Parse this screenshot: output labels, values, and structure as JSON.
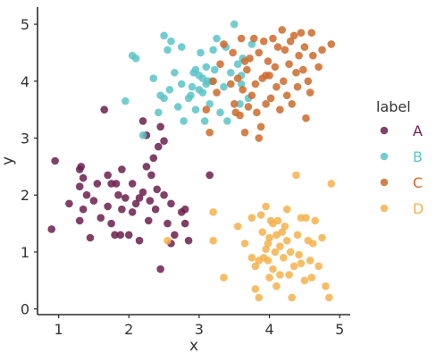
{
  "chart_data": {
    "type": "scatter",
    "xlabel": "x",
    "ylabel": "y",
    "xlim": [
      0.7,
      5.15
    ],
    "ylim": [
      -0.1,
      5.3
    ],
    "xticks": [
      "1",
      "2",
      "3",
      "4",
      "5"
    ],
    "yticks": [
      "0",
      "1",
      "2",
      "3",
      "4",
      "5"
    ],
    "grid": false,
    "legend": {
      "title": "label",
      "placement": "right",
      "entries": [
        "A",
        "B",
        "C",
        "D"
      ]
    },
    "series": [
      {
        "name": "A",
        "color": "#6b1f4e",
        "points": [
          [
            0.95,
            2.6
          ],
          [
            0.9,
            1.4
          ],
          [
            1.15,
            1.85
          ],
          [
            1.3,
            2.45
          ],
          [
            1.3,
            2.15
          ],
          [
            1.32,
            2.5
          ],
          [
            1.35,
            2.3
          ],
          [
            1.4,
            2.0
          ],
          [
            1.3,
            1.55
          ],
          [
            1.35,
            1.75
          ],
          [
            1.45,
            1.25
          ],
          [
            1.5,
            1.9
          ],
          [
            1.55,
            2.2
          ],
          [
            1.6,
            1.6
          ],
          [
            1.65,
            3.5
          ],
          [
            1.7,
            1.8
          ],
          [
            1.7,
            2.35
          ],
          [
            1.75,
            1.5
          ],
          [
            1.75,
            2.2
          ],
          [
            1.8,
            1.3
          ],
          [
            1.82,
            2.2
          ],
          [
            1.85,
            2.0
          ],
          [
            1.88,
            1.3
          ],
          [
            1.9,
            1.75
          ],
          [
            1.9,
            2.45
          ],
          [
            1.95,
            1.95
          ],
          [
            2.0,
            1.3
          ],
          [
            2.05,
            1.7
          ],
          [
            2.05,
            2.2
          ],
          [
            2.1,
            1.85
          ],
          [
            2.15,
            1.2
          ],
          [
            2.2,
            2.05
          ],
          [
            2.2,
            3.3
          ],
          [
            2.25,
            2.5
          ],
          [
            2.25,
            3.05
          ],
          [
            2.28,
            1.55
          ],
          [
            2.3,
            1.9
          ],
          [
            2.32,
            2.35
          ],
          [
            2.35,
            2.65
          ],
          [
            2.38,
            1.75
          ],
          [
            2.4,
            2.1
          ],
          [
            2.42,
            2.85
          ],
          [
            2.45,
            0.7
          ],
          [
            2.45,
            3.2
          ],
          [
            2.5,
            2.95
          ],
          [
            2.55,
            1.5
          ],
          [
            2.6,
            1.85
          ],
          [
            2.65,
            1.3
          ],
          [
            2.75,
            1.7
          ],
          [
            2.8,
            1.5
          ],
          [
            2.85,
            1.2
          ],
          [
            2.8,
            1.75
          ],
          [
            3.15,
            2.35
          ],
          [
            2.5,
            2.0
          ],
          [
            2.15,
            1.95
          ],
          [
            2.6,
            1.15
          ]
        ]
      },
      {
        "name": "B",
        "color": "#5bc4c8",
        "points": [
          [
            1.95,
            3.65
          ],
          [
            2.05,
            4.45
          ],
          [
            2.2,
            3.05
          ],
          [
            2.35,
            4.05
          ],
          [
            2.42,
            3.45
          ],
          [
            2.45,
            3.75
          ],
          [
            2.5,
            3.7
          ],
          [
            2.5,
            4.8
          ],
          [
            2.55,
            4.55
          ],
          [
            2.58,
            3.85
          ],
          [
            2.6,
            4.7
          ],
          [
            2.65,
            4.15
          ],
          [
            2.7,
            3.55
          ],
          [
            2.75,
            4.6
          ],
          [
            2.78,
            3.3
          ],
          [
            2.85,
            3.7
          ],
          [
            2.88,
            3.75
          ],
          [
            2.9,
            3.9
          ],
          [
            2.92,
            4.15
          ],
          [
            2.95,
            3.5
          ],
          [
            3.0,
            3.85
          ],
          [
            3.0,
            4.1
          ],
          [
            3.02,
            4.5
          ],
          [
            3.05,
            4.05
          ],
          [
            3.05,
            3.8
          ],
          [
            3.08,
            3.3
          ],
          [
            3.1,
            4.25
          ],
          [
            3.12,
            4.0
          ],
          [
            3.15,
            3.6
          ],
          [
            3.18,
            4.0
          ],
          [
            3.2,
            4.55
          ],
          [
            3.22,
            4.2
          ],
          [
            3.25,
            4.75
          ],
          [
            3.3,
            3.45
          ],
          [
            3.35,
            3.9
          ],
          [
            3.38,
            4.6
          ],
          [
            3.4,
            3.3
          ],
          [
            3.45,
            4.15
          ],
          [
            3.5,
            5.0
          ],
          [
            3.55,
            4.3
          ],
          [
            3.58,
            3.6
          ],
          [
            3.6,
            4.1
          ],
          [
            3.62,
            4.4
          ],
          [
            3.7,
            3.7
          ],
          [
            3.75,
            4.65
          ],
          [
            3.1,
            3.95
          ],
          [
            2.95,
            4.2
          ],
          [
            2.75,
            3.95
          ],
          [
            3.6,
            3.95
          ],
          [
            2.1,
            4.4
          ]
        ]
      },
      {
        "name": "C",
        "color": "#cc6a2a",
        "points": [
          [
            3.1,
            3.5
          ],
          [
            3.15,
            3.1
          ],
          [
            3.2,
            4.0
          ],
          [
            3.25,
            3.8
          ],
          [
            3.3,
            4.3
          ],
          [
            3.35,
            4.65
          ],
          [
            3.45,
            3.95
          ],
          [
            3.48,
            4.5
          ],
          [
            3.5,
            3.6
          ],
          [
            3.52,
            3.45
          ],
          [
            3.55,
            4.05
          ],
          [
            3.58,
            3.4
          ],
          [
            3.6,
            4.75
          ],
          [
            3.62,
            3.85
          ],
          [
            3.65,
            4.35
          ],
          [
            3.68,
            4.2
          ],
          [
            3.7,
            3.55
          ],
          [
            3.72,
            4.4
          ],
          [
            3.75,
            3.75
          ],
          [
            3.78,
            4.75
          ],
          [
            3.8,
            3.95
          ],
          [
            3.82,
            3.45
          ],
          [
            3.85,
            3.0
          ],
          [
            3.85,
            4.5
          ],
          [
            3.88,
            3.2
          ],
          [
            3.9,
            4.05
          ],
          [
            3.92,
            4.7
          ],
          [
            3.95,
            3.6
          ],
          [
            3.98,
            4.35
          ],
          [
            4.0,
            4.1
          ],
          [
            4.02,
            3.7
          ],
          [
            4.05,
            4.75
          ],
          [
            4.08,
            4.25
          ],
          [
            4.1,
            3.9
          ],
          [
            4.12,
            4.6
          ],
          [
            4.15,
            3.5
          ],
          [
            4.18,
            4.9
          ],
          [
            4.2,
            4.0
          ],
          [
            4.22,
            4.55
          ],
          [
            4.25,
            3.75
          ],
          [
            4.28,
            4.3
          ],
          [
            4.3,
            4.7
          ],
          [
            4.32,
            3.6
          ],
          [
            4.35,
            4.8
          ],
          [
            4.38,
            4.15
          ],
          [
            4.4,
            3.9
          ],
          [
            4.42,
            4.45
          ],
          [
            4.45,
            4.85
          ],
          [
            4.48,
            4.2
          ],
          [
            4.5,
            4.6
          ],
          [
            4.52,
            3.35
          ],
          [
            4.55,
            4.0
          ],
          [
            4.58,
            3.8
          ],
          [
            4.62,
            4.45
          ],
          [
            4.7,
            4.25
          ],
          [
            4.75,
            4.55
          ],
          [
            4.88,
            4.65
          ],
          [
            4.6,
            4.85
          ],
          [
            3.65,
            3.1
          ],
          [
            3.95,
            4.1
          ]
        ]
      },
      {
        "name": "D",
        "color": "#f5b14c",
        "points": [
          [
            2.55,
            1.2
          ],
          [
            3.2,
            1.7
          ],
          [
            3.2,
            1.2
          ],
          [
            3.35,
            0.55
          ],
          [
            3.55,
            1.45
          ],
          [
            3.65,
            1.15
          ],
          [
            3.75,
            0.9
          ],
          [
            3.8,
            0.35
          ],
          [
            3.8,
            0.75
          ],
          [
            3.85,
            0.85
          ],
          [
            3.88,
            1.65
          ],
          [
            3.9,
            1.35
          ],
          [
            3.92,
            0.9
          ],
          [
            3.95,
            1.05
          ],
          [
            3.95,
            1.8
          ],
          [
            3.98,
            0.85
          ],
          [
            4.0,
            1.25
          ],
          [
            4.02,
            1.55
          ],
          [
            4.05,
            0.7
          ],
          [
            4.05,
            1.5
          ],
          [
            4.08,
            1.0
          ],
          [
            4.1,
            1.3
          ],
          [
            4.12,
            1.55
          ],
          [
            4.15,
            0.6
          ],
          [
            4.15,
            1.1
          ],
          [
            4.18,
            1.35
          ],
          [
            4.2,
            0.9
          ],
          [
            4.22,
            1.45
          ],
          [
            4.25,
            1.2
          ],
          [
            4.28,
            0.6
          ],
          [
            4.3,
            1.0
          ],
          [
            4.32,
            0.2
          ],
          [
            4.35,
            0.75
          ],
          [
            4.38,
            2.35
          ],
          [
            4.4,
            1.3
          ],
          [
            4.42,
            0.95
          ],
          [
            4.45,
            1.6
          ],
          [
            4.5,
            0.5
          ],
          [
            4.52,
            1.6
          ],
          [
            4.55,
            1.2
          ],
          [
            4.58,
            0.85
          ],
          [
            4.6,
            0.55
          ],
          [
            4.62,
            1.15
          ],
          [
            4.65,
            1.55
          ],
          [
            4.7,
            0.75
          ],
          [
            4.75,
            1.25
          ],
          [
            4.8,
            0.4
          ],
          [
            4.85,
            0.2
          ],
          [
            4.88,
            2.2
          ],
          [
            3.85,
            0.2
          ],
          [
            4.0,
            0.55
          ],
          [
            4.1,
            0.4
          ],
          [
            4.25,
            1.75
          ],
          [
            4.45,
            0.8
          ],
          [
            3.75,
            1.6
          ],
          [
            3.98,
            1.15
          ]
        ]
      }
    ]
  }
}
